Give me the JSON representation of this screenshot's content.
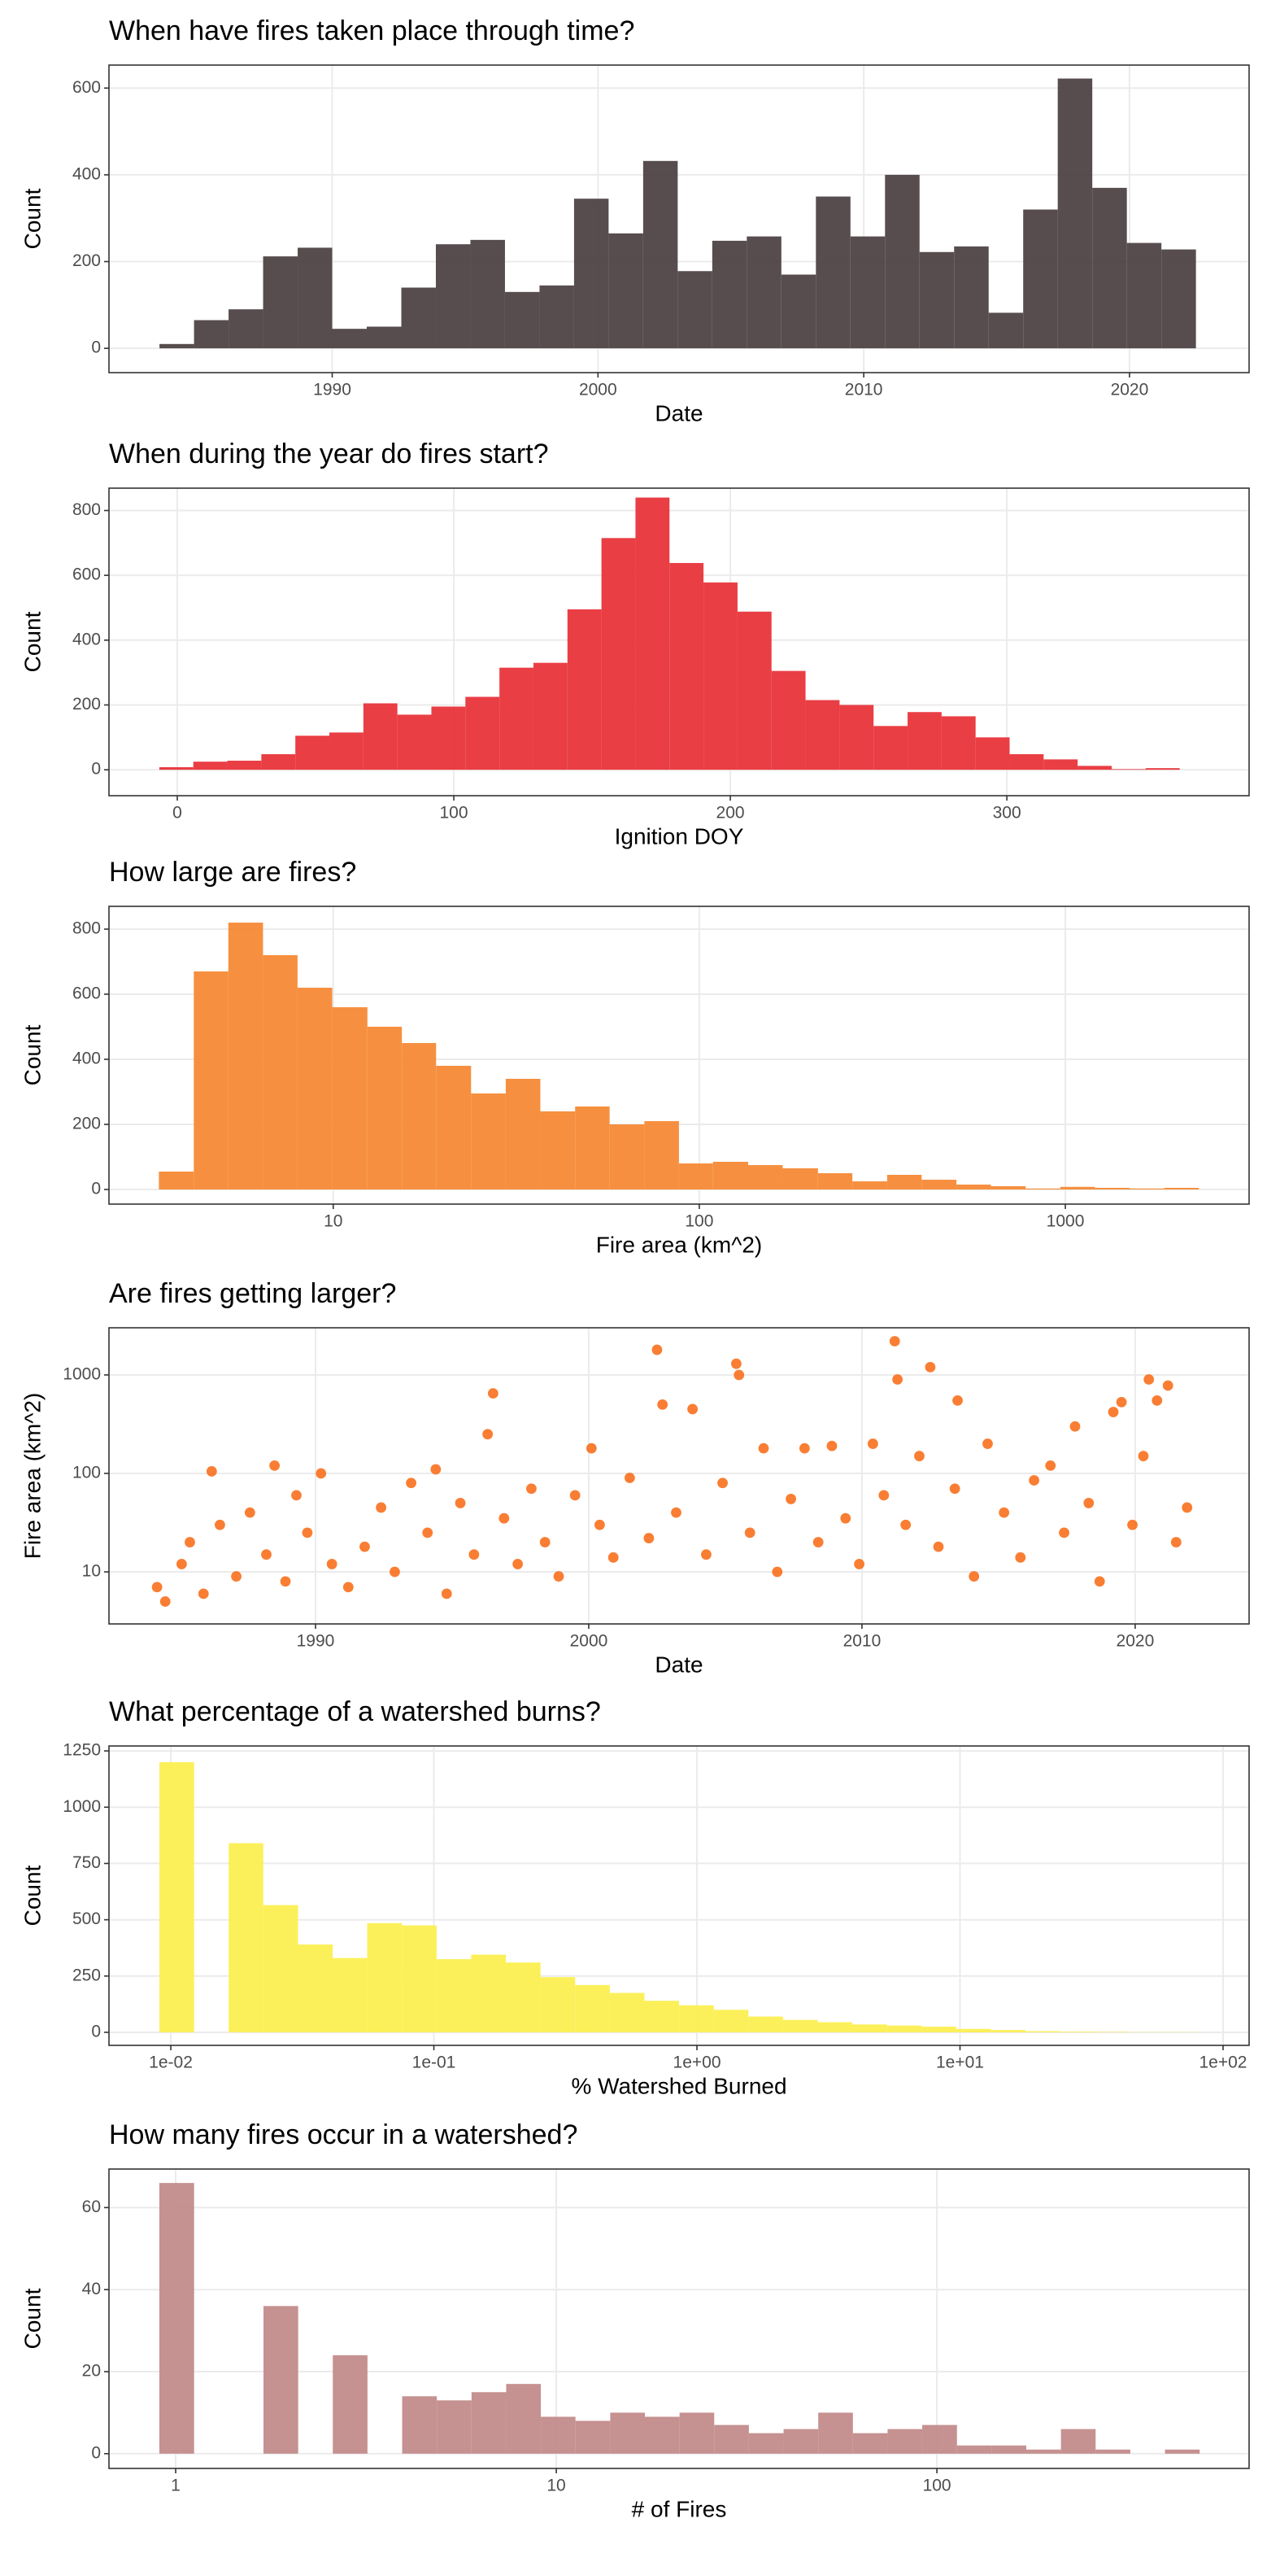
{
  "chart_data": [
    {
      "type": "histogram",
      "title": "When have fires taken place through time?",
      "xlabel": "Date",
      "ylabel": "Count",
      "color": "#4e4346",
      "bins": [
        1983.5,
        1984.8,
        1986.1,
        1987.4,
        1988.7,
        1990.0,
        1991.3,
        1992.6,
        1993.9,
        1995.2,
        1996.5,
        1997.8,
        1999.1,
        2000.4,
        2001.7,
        2003.0,
        2004.3,
        2005.6,
        2006.9,
        2008.2,
        2009.5,
        2010.8,
        2012.1,
        2013.4,
        2014.7,
        2016.0,
        2017.3,
        2018.6,
        2019.9,
        2021.2,
        2022.5
      ],
      "values": [
        10,
        65,
        90,
        212,
        232,
        45,
        50,
        140,
        240,
        250,
        130,
        145,
        345,
        265,
        432,
        178,
        248,
        258,
        170,
        350,
        258,
        400,
        222,
        235,
        82,
        320,
        622,
        370,
        243,
        228
      ],
      "xlim": [
        1981.6,
        2024.5
      ],
      "ylim": [
        -56,
        653
      ],
      "xticks": [
        1990,
        2000,
        2010,
        2020
      ],
      "yticks": [
        0,
        200,
        400,
        600
      ],
      "x_scale": "linear",
      "grid": true
    },
    {
      "type": "histogram",
      "title": "When during the year do fires start?",
      "xlabel": "Ignition DOY",
      "ylabel": "Count",
      "color": "#e8343a",
      "bins": [
        -6.5,
        5.8,
        18.1,
        30.4,
        42.7,
        55,
        67.3,
        79.6,
        91.9,
        104.2,
        116.5,
        128.8,
        141.1,
        153.4,
        165.7,
        178,
        190.3,
        202.6,
        214.9,
        227.2,
        239.5,
        251.8,
        264.1,
        276.4,
        288.7,
        301,
        313.3,
        325.6,
        337.9,
        350.2,
        362.5
      ],
      "values": [
        8,
        25,
        28,
        48,
        105,
        115,
        205,
        170,
        195,
        225,
        315,
        330,
        495,
        715,
        840,
        638,
        578,
        488,
        305,
        215,
        200,
        135,
        178,
        165,
        100,
        48,
        32,
        12,
        2,
        5
      ],
      "xlim": [
        -24.7,
        387.6
      ],
      "ylim": [
        -80,
        869
      ],
      "xticks": [
        0,
        100,
        200,
        300
      ],
      "yticks": [
        0,
        200,
        400,
        600,
        800
      ],
      "x_scale": "linear",
      "grid": true
    },
    {
      "type": "histogram",
      "title": "How large are fires?",
      "xlabel": "Fire area (km^2)",
      "ylabel": "Count",
      "color": "#f68a36",
      "bins": [
        3.34,
        4.16,
        5.17,
        6.43,
        7.99,
        9.94,
        12.4,
        15.4,
        19.1,
        23.8,
        29.6,
        36.8,
        45.8,
        56.9,
        70.8,
        88.0,
        109,
        136,
        169,
        211,
        262,
        326,
        405,
        504,
        626,
        779,
        969,
        1205,
        1498,
        1864,
        2317
      ],
      "values": [
        55,
        670,
        820,
        720,
        620,
        560,
        500,
        450,
        380,
        295,
        340,
        240,
        255,
        200,
        210,
        80,
        85,
        75,
        65,
        50,
        25,
        45,
        30,
        15,
        10,
        3,
        8,
        5,
        3,
        5
      ],
      "xlim": [
        2.44,
        3177
      ],
      "ylim": [
        -45,
        870
      ],
      "xticks": [
        10,
        100,
        1000
      ],
      "yticks": [
        0,
        200,
        400,
        600,
        800
      ],
      "x_scale": "log",
      "grid": true
    },
    {
      "type": "scatter",
      "title": "Are fires getting larger?",
      "xlabel": "Date",
      "ylabel": "Fire area (km^2)",
      "color": "#f8670f",
      "x": [
        1984.2,
        1984.5,
        1985.1,
        1985.4,
        1985.9,
        1986.2,
        1986.5,
        1987.1,
        1987.6,
        1988.2,
        1988.5,
        1988.9,
        1989.3,
        1989.7,
        1990.2,
        1990.6,
        1991.2,
        1991.8,
        1992.4,
        1992.9,
        1993.5,
        1994.1,
        1994.4,
        1994.8,
        1995.3,
        1995.8,
        1996.3,
        1996.5,
        1996.9,
        1997.4,
        1997.9,
        1998.4,
        1998.9,
        1999.5,
        2000.1,
        2000.4,
        2000.9,
        2001.5,
        2002.2,
        2002.5,
        2002.7,
        2003.2,
        2003.8,
        2004.3,
        2004.9,
        2005.4,
        2005.5,
        2005.9,
        2006.4,
        2006.9,
        2007.4,
        2007.9,
        2008.4,
        2008.9,
        2009.4,
        2009.9,
        2010.4,
        2010.8,
        2011.2,
        2011.3,
        2011.6,
        2012.1,
        2012.5,
        2012.8,
        2013.4,
        2013.5,
        2014.1,
        2014.6,
        2015.2,
        2015.8,
        2016.3,
        2016.9,
        2017.4,
        2017.8,
        2018.3,
        2018.7,
        2019.2,
        2019.5,
        2019.9,
        2020.3,
        2020.5,
        2020.8,
        2021.2,
        2021.5,
        2021.9
      ],
      "y": [
        7,
        5,
        12,
        20,
        6,
        105,
        30,
        9,
        40,
        15,
        120,
        8,
        60,
        25,
        100,
        12,
        7,
        18,
        45,
        10,
        80,
        25,
        110,
        6,
        50,
        15,
        250,
        650,
        35,
        12,
        70,
        20,
        9,
        60,
        180,
        30,
        14,
        90,
        22,
        1800,
        500,
        40,
        450,
        15,
        80,
        1300,
        1000,
        25,
        180,
        10,
        55,
        180,
        20,
        190,
        35,
        12,
        200,
        60,
        2200,
        900,
        30,
        150,
        1200,
        18,
        70,
        550,
        9,
        200,
        40,
        14,
        85,
        120,
        25,
        300,
        50,
        8,
        420,
        530,
        30,
        150,
        900,
        550,
        780,
        20,
        45
      ],
      "xlim": [
        1982.44,
        2024.17
      ],
      "ylim": [
        2.96,
        3013
      ],
      "xticks": [
        1990,
        2000,
        2010,
        2020
      ],
      "yticks": [
        10,
        100,
        1000
      ],
      "y_scale": "log",
      "grid": true
    },
    {
      "type": "histogram",
      "title": "What percentage of a watershed burns?",
      "xlabel": "% Watershed Burned",
      "ylabel": "Count",
      "color": "#fbef50",
      "bins": [
        0.00905,
        0.01226,
        0.0166,
        0.02247,
        0.03045,
        0.04123,
        0.0558,
        0.0756,
        0.1024,
        0.1387,
        0.1878,
        0.2543,
        0.3444,
        0.4665,
        0.6318,
        0.8555,
        1.159,
        1.569,
        2.125,
        2.877,
        3.896,
        5.277,
        7.146,
        9.678,
        13.11,
        17.75,
        24.04,
        32.55,
        44.09,
        59.7,
        80.86
      ],
      "values": [
        1200,
        0,
        840,
        565,
        390,
        330,
        485,
        475,
        325,
        345,
        310,
        245,
        210,
        175,
        140,
        120,
        100,
        70,
        55,
        45,
        35,
        30,
        25,
        15,
        10,
        5,
        3,
        2,
        1,
        1
      ],
      "xlim": [
        0.00582,
        125.6
      ],
      "ylim": [
        -58,
        1272
      ],
      "xticks": [
        {
          "value": 0.01,
          "label": "1e-02"
        },
        {
          "value": 0.1,
          "label": "1e-01"
        },
        {
          "value": 1,
          "label": "1e+00"
        },
        {
          "value": 10,
          "label": "1e+01"
        },
        {
          "value": 100,
          "label": "1e+02"
        }
      ],
      "yticks": [
        0,
        250,
        500,
        750,
        1000,
        1250
      ],
      "x_scale": "log",
      "grid": true
    },
    {
      "type": "histogram",
      "title": "How many fires occur in a watershed?",
      "xlabel": "# of Fires",
      "ylabel": "Count",
      "color": "#c38b8b",
      "bins": [
        0.906,
        1.118,
        1.379,
        1.701,
        2.098,
        2.587,
        3.191,
        3.936,
        4.855,
        5.988,
        7.385,
        9.108,
        11.23,
        13.86,
        17.09,
        21.08,
        26.0,
        32.06,
        39.55,
        48.78,
        60.16,
        74.2,
        91.5,
        112.9,
        139.2,
        171.7,
        211.8,
        261.2,
        322.2,
        397.4,
        490.2
      ],
      "values": [
        66,
        0,
        0,
        36,
        0,
        24,
        0,
        14,
        13,
        15,
        17,
        9,
        8,
        10,
        9,
        10,
        7,
        5,
        6,
        10,
        5,
        6,
        7,
        2,
        2,
        1,
        6,
        1,
        0,
        1
      ],
      "xlim": [
        0.668,
        661
      ],
      "ylim": [
        -3.6,
        69.4
      ],
      "xticks": [
        1,
        10,
        100
      ],
      "yticks": [
        0,
        20,
        40,
        60
      ],
      "x_scale": "log",
      "grid": true
    }
  ]
}
